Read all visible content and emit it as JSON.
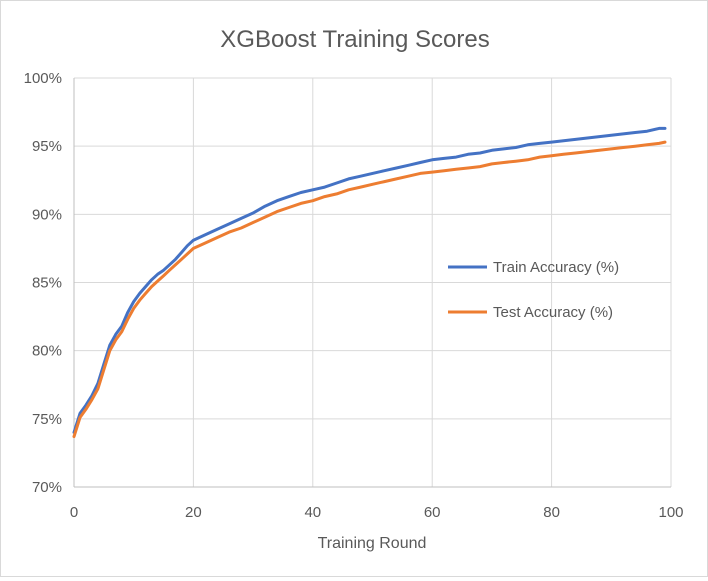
{
  "chart_data": {
    "type": "line",
    "title": "XGBoost Training Scores",
    "xlabel": "Training Round",
    "ylabel": "",
    "xlim": [
      0,
      100
    ],
    "ylim": [
      70,
      100
    ],
    "x_ticks": [
      0,
      20,
      40,
      60,
      80,
      100
    ],
    "y_ticks": [
      70,
      75,
      80,
      85,
      90,
      95,
      100
    ],
    "y_tick_labels": [
      "70%",
      "75%",
      "80%",
      "85%",
      "90%",
      "95%",
      "100%"
    ],
    "grid": true,
    "legend_position": "right",
    "x": [
      0,
      1,
      2,
      3,
      4,
      5,
      6,
      7,
      8,
      9,
      10,
      11,
      12,
      13,
      14,
      15,
      16,
      17,
      18,
      19,
      20,
      22,
      24,
      26,
      28,
      30,
      32,
      34,
      36,
      38,
      40,
      42,
      44,
      46,
      48,
      50,
      52,
      54,
      56,
      58,
      60,
      62,
      64,
      66,
      68,
      70,
      72,
      74,
      76,
      78,
      80,
      82,
      84,
      86,
      88,
      90,
      92,
      94,
      96,
      98,
      99
    ],
    "series": [
      {
        "name": "Train Accuracy (%)",
        "color": "#4472c4",
        "values": [
          74.0,
          75.4,
          76.0,
          76.7,
          77.6,
          79.0,
          80.4,
          81.2,
          81.8,
          82.8,
          83.6,
          84.2,
          84.7,
          85.2,
          85.6,
          85.9,
          86.3,
          86.7,
          87.2,
          87.7,
          88.1,
          88.5,
          88.9,
          89.3,
          89.7,
          90.1,
          90.6,
          91.0,
          91.3,
          91.6,
          91.8,
          92.0,
          92.3,
          92.6,
          92.8,
          93.0,
          93.2,
          93.4,
          93.6,
          93.8,
          94.0,
          94.1,
          94.2,
          94.4,
          94.5,
          94.7,
          94.8,
          94.9,
          95.1,
          95.2,
          95.3,
          95.4,
          95.5,
          95.6,
          95.7,
          95.8,
          95.9,
          96.0,
          96.1,
          96.3,
          96.3
        ]
      },
      {
        "name": "Test Accuracy (%)",
        "color": "#ed7d31",
        "values": [
          73.7,
          75.1,
          75.7,
          76.4,
          77.2,
          78.6,
          80.0,
          80.8,
          81.4,
          82.3,
          83.1,
          83.7,
          84.2,
          84.7,
          85.1,
          85.5,
          85.9,
          86.3,
          86.7,
          87.1,
          87.5,
          87.9,
          88.3,
          88.7,
          89.0,
          89.4,
          89.8,
          90.2,
          90.5,
          90.8,
          91.0,
          91.3,
          91.5,
          91.8,
          92.0,
          92.2,
          92.4,
          92.6,
          92.8,
          93.0,
          93.1,
          93.2,
          93.3,
          93.4,
          93.5,
          93.7,
          93.8,
          93.9,
          94.0,
          94.2,
          94.3,
          94.4,
          94.5,
          94.6,
          94.7,
          94.8,
          94.9,
          95.0,
          95.1,
          95.2,
          95.3
        ]
      }
    ]
  }
}
